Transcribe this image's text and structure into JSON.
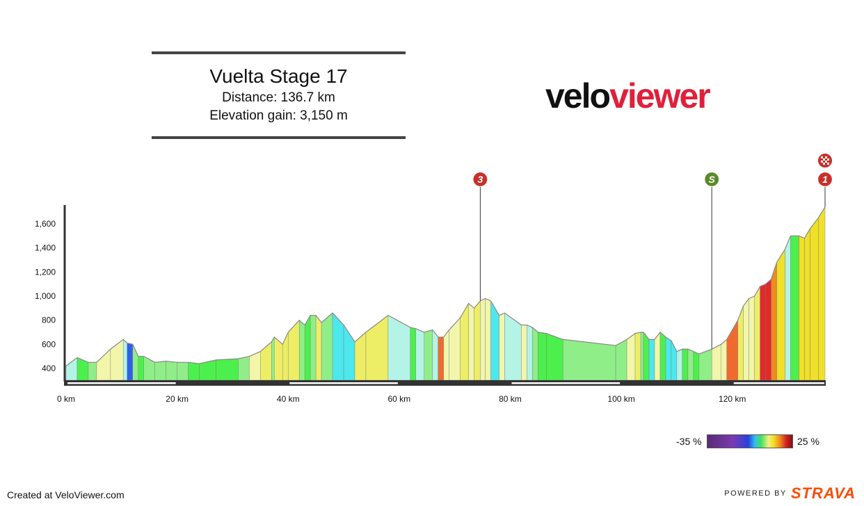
{
  "header": {
    "title": "Vuelta Stage 17",
    "distance": "Distance: 136.7 km",
    "elevation_gain": "Elevation gain: 3,150 m"
  },
  "logo": {
    "part1": "velo",
    "part2": "viewer"
  },
  "footer": {
    "created": "Created at VeloViewer.com",
    "powered_by": "POWERED BY",
    "strava": "STRAVA"
  },
  "gradient_legend": {
    "min_label": "-35 %",
    "max_label": "25 %"
  },
  "markers": [
    {
      "label": "3",
      "km": 74.6,
      "kind": "climb",
      "color": "#c8302a"
    },
    {
      "label": "S",
      "km": 116.3,
      "kind": "sprint",
      "color": "#5a8a2a"
    },
    {
      "label": "1",
      "km": 136.7,
      "kind": "climb",
      "color": "#c8302a"
    },
    {
      "label": "",
      "km": 136.7,
      "kind": "finish-flag",
      "color": "#c8302a"
    }
  ],
  "chart_data": {
    "type": "area",
    "xlabel": "",
    "ylabel": "",
    "x_unit": "km",
    "xlim": [
      0,
      136.7
    ],
    "ylim": [
      300,
      1800
    ],
    "x_ticks": [
      {
        "value": 0,
        "label": "0 km"
      },
      {
        "value": 20,
        "label": "20 km"
      },
      {
        "value": 40,
        "label": "40 km"
      },
      {
        "value": 60,
        "label": "60 km"
      },
      {
        "value": 80,
        "label": "80 km"
      },
      {
        "value": 100,
        "label": "100 km"
      },
      {
        "value": 120,
        "label": "120 km"
      }
    ],
    "y_ticks": [
      {
        "value": 400,
        "label": "400"
      },
      {
        "value": 600,
        "label": "600"
      },
      {
        "value": 800,
        "label": "800"
      },
      {
        "value": 1000,
        "label": "1,000"
      },
      {
        "value": 1200,
        "label": "1,200"
      },
      {
        "value": 1400,
        "label": "1,400"
      },
      {
        "value": 1600,
        "label": "1,600"
      }
    ],
    "colors": {
      "green": "#4cf04c",
      "lightgreen": "#90ee88",
      "mint": "#b4f4e6",
      "cyan": "#4ce8ee",
      "blue": "#3060e8",
      "paleyellow": "#f2f6aa",
      "yellow": "#eeee66",
      "brightyellow": "#f0e028",
      "orange": "#f08a20",
      "deeporange": "#f06a30",
      "red": "#e02a2a"
    },
    "series": [
      {
        "values": [
          [
            0,
            420,
            "paleyellow"
          ],
          [
            2,
            490,
            "mint"
          ],
          [
            4,
            450,
            "green"
          ],
          [
            5.5,
            450,
            "lightgreen"
          ],
          [
            8,
            560,
            "paleyellow"
          ],
          [
            10.3,
            640,
            "paleyellow"
          ],
          [
            11,
            610,
            "mint"
          ],
          [
            12,
            600,
            "blue"
          ],
          [
            13,
            500,
            "lightgreen"
          ],
          [
            14,
            500,
            "green"
          ],
          [
            16,
            450,
            "lightgreen"
          ],
          [
            18,
            460,
            "lightgreen"
          ],
          [
            20,
            450,
            "lightgreen"
          ],
          [
            22,
            450,
            "lightgreen"
          ],
          [
            24,
            440,
            "green"
          ],
          [
            27,
            470,
            "green"
          ],
          [
            31,
            480,
            "green"
          ],
          [
            33,
            500,
            "lightgreen"
          ],
          [
            35,
            540,
            "paleyellow"
          ],
          [
            37,
            620,
            "yellow"
          ],
          [
            37.5,
            660,
            "lightgreen"
          ],
          [
            39,
            600,
            "yellow"
          ],
          [
            40,
            700,
            "yellow"
          ],
          [
            42,
            800,
            "yellow"
          ],
          [
            43,
            760,
            "lightgreen"
          ],
          [
            44,
            840,
            "green"
          ],
          [
            45,
            840,
            "lightgreen"
          ],
          [
            46,
            780,
            "yellow"
          ],
          [
            48,
            860,
            "lightgreen"
          ],
          [
            50,
            760,
            "cyan"
          ],
          [
            52,
            620,
            "cyan"
          ],
          [
            54,
            700,
            "yellow"
          ],
          [
            58,
            840,
            "yellow"
          ],
          [
            62,
            740,
            "mint"
          ],
          [
            63,
            730,
            "green"
          ],
          [
            64.5,
            700,
            "mint"
          ],
          [
            66,
            720,
            "lightgreen"
          ],
          [
            67,
            660,
            "mint"
          ],
          [
            68,
            660,
            "deeporange"
          ],
          [
            69,
            720,
            "paleyellow"
          ],
          [
            71,
            820,
            "paleyellow"
          ],
          [
            72.5,
            940,
            "yellow"
          ],
          [
            73.5,
            900,
            "paleyellow"
          ],
          [
            74.6,
            960,
            "yellow"
          ],
          [
            75.5,
            980,
            "paleyellow"
          ],
          [
            76.5,
            960,
            "paleyellow"
          ],
          [
            78,
            840,
            "cyan"
          ],
          [
            79,
            860,
            "paleyellow"
          ],
          [
            82,
            760,
            "mint"
          ],
          [
            83,
            760,
            "paleyellow"
          ],
          [
            84,
            740,
            "mint"
          ],
          [
            85,
            700,
            "lightgreen"
          ],
          [
            86.5,
            690,
            "green"
          ],
          [
            89.5,
            640,
            "green"
          ],
          [
            99,
            590,
            "lightgreen"
          ],
          [
            101,
            640,
            "lightgreen"
          ],
          [
            102.5,
            690,
            "paleyellow"
          ],
          [
            103.5,
            700,
            "yellow"
          ],
          [
            104,
            700,
            "lightgreen"
          ],
          [
            105,
            640,
            "green"
          ],
          [
            106,
            640,
            "cyan"
          ],
          [
            107,
            700,
            "paleyellow"
          ],
          [
            108,
            660,
            "green"
          ],
          [
            109,
            630,
            "cyan"
          ],
          [
            110,
            540,
            "cyan"
          ],
          [
            111,
            560,
            "mint"
          ],
          [
            112,
            560,
            "green"
          ],
          [
            113,
            540,
            "lightgreen"
          ],
          [
            114,
            520,
            "green"
          ],
          [
            116.3,
            560,
            "lightgreen"
          ],
          [
            118,
            600,
            "paleyellow"
          ],
          [
            119,
            640,
            "paleyellow"
          ],
          [
            121,
            800,
            "deeporange"
          ],
          [
            122,
            920,
            "yellow"
          ],
          [
            123,
            980,
            "paleyellow"
          ],
          [
            124,
            1000,
            "paleyellow"
          ],
          [
            125,
            1080,
            "yellow"
          ],
          [
            126,
            1100,
            "red"
          ],
          [
            127,
            1140,
            "red"
          ],
          [
            128,
            1280,
            "orange"
          ],
          [
            129.5,
            1390,
            "brightyellow"
          ],
          [
            130.5,
            1500,
            "mint"
          ],
          [
            132,
            1500,
            "green"
          ],
          [
            133,
            1480,
            "brightyellow"
          ],
          [
            134,
            1560,
            "brightyellow"
          ],
          [
            135.5,
            1650,
            "brightyellow"
          ],
          [
            136.7,
            1740,
            "brightyellow"
          ]
        ]
      }
    ]
  }
}
